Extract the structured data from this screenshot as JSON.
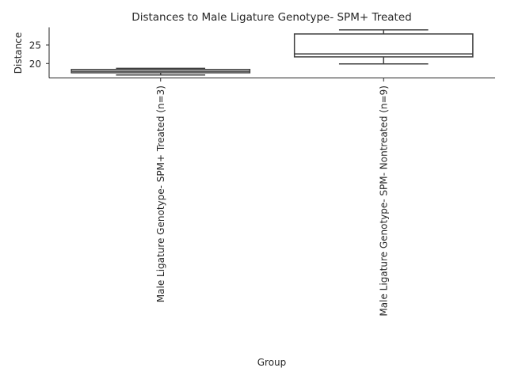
{
  "chart_data": {
    "type": "box",
    "title": "Distances to Male Ligature Genotype- SPM+ Treated",
    "xlabel": "Group",
    "ylabel": "Distance",
    "ylim": [
      16.1,
      29.8
    ],
    "yticks": [
      20,
      25
    ],
    "grid": false,
    "categories": [
      "Male Ligature Genotype- SPM+ Treated (n=3)",
      "Male Ligature Genotype- SPM- Nontreated (n=9)"
    ],
    "boxes": [
      {
        "whisker_low": 16.9,
        "q1": 17.5,
        "median": 17.9,
        "q3": 18.4,
        "whisker_high": 18.7
      },
      {
        "whisker_low": 19.9,
        "q1": 21.8,
        "median": 22.6,
        "q3": 28.0,
        "whisker_high": 29.1
      }
    ],
    "colors": {
      "line": "#3f3f3f",
      "text": "#262626"
    }
  }
}
